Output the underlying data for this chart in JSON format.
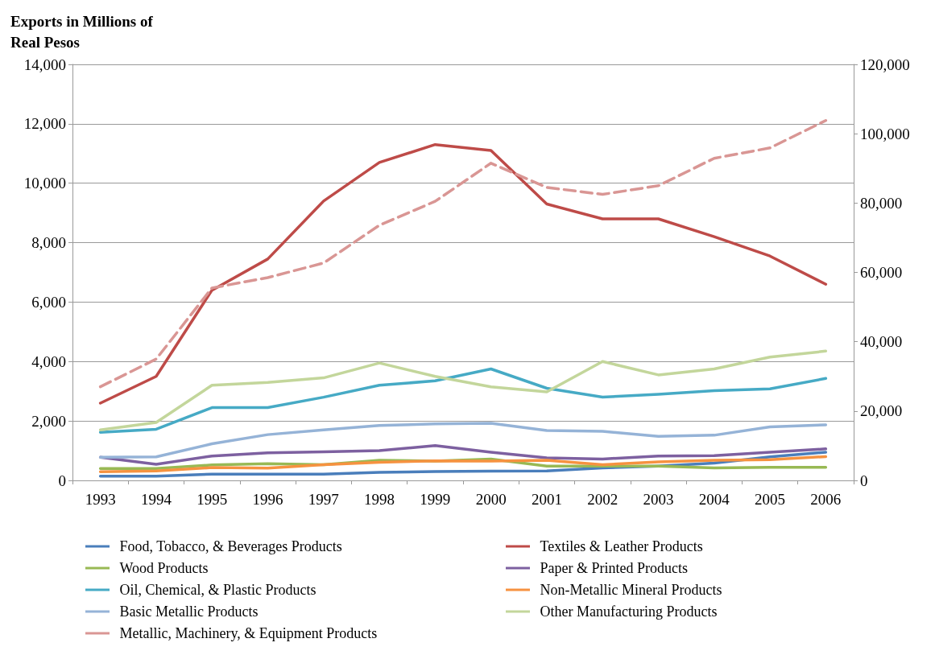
{
  "chart_data": {
    "type": "line",
    "ylabel": "Exports in Millions of Real Pesos",
    "categories": [
      "1993",
      "1994",
      "1995",
      "1996",
      "1997",
      "1998",
      "1999",
      "2000",
      "2001",
      "2002",
      "2003",
      "2004",
      "2005",
      "2006"
    ],
    "ylim": [
      0,
      14000
    ],
    "yticks": [
      {
        "value": 0,
        "label": "0"
      },
      {
        "value": 2000,
        "label": "2,000"
      },
      {
        "value": 4000,
        "label": "4,000"
      },
      {
        "value": 6000,
        "label": "6,000"
      },
      {
        "value": 8000,
        "label": "8,000"
      },
      {
        "value": 10000,
        "label": "10,000"
      },
      {
        "value": 12000,
        "label": "12,000"
      },
      {
        "value": 14000,
        "label": "14,000"
      }
    ],
    "y2lim": [
      0,
      120000
    ],
    "y2ticks": [
      {
        "value": 0,
        "label": "0"
      },
      {
        "value": 20000,
        "label": "20,000"
      },
      {
        "value": 40000,
        "label": "40,000"
      },
      {
        "value": 60000,
        "label": "60,000"
      },
      {
        "value": 80000,
        "label": "80,000"
      },
      {
        "value": 100000,
        "label": "100,000"
      },
      {
        "value": 120000,
        "label": "120,000"
      }
    ],
    "grid": "y",
    "legend": "bottom",
    "marker": "none",
    "series": [
      {
        "name": "Food, Tobacco, & Beverages Products",
        "color": "#4a7ebb",
        "values": [
          140,
          140,
          210,
          210,
          210,
          270,
          300,
          310,
          320,
          420,
          480,
          580,
          790,
          950
        ]
      },
      {
        "name": "Textiles & Leather Products",
        "color": "#be4b48",
        "values": [
          2600,
          3500,
          6400,
          7450,
          9400,
          10700,
          11300,
          11100,
          9300,
          8800,
          8800,
          8200,
          7550,
          6600
        ]
      },
      {
        "name": "Wood Products",
        "color": "#98b954",
        "values": [
          400,
          400,
          520,
          560,
          530,
          680,
          650,
          720,
          480,
          480,
          480,
          420,
          440,
          440
        ]
      },
      {
        "name": "Paper & Printed Products",
        "color": "#7d60a0",
        "values": [
          780,
          540,
          820,
          930,
          960,
          1000,
          1170,
          950,
          760,
          720,
          820,
          830,
          950,
          1060
        ]
      },
      {
        "name": "Oil, Chemical, & Plastic Products",
        "color": "#46aac5",
        "values": [
          1620,
          1720,
          2450,
          2450,
          2800,
          3200,
          3350,
          3750,
          3100,
          2800,
          2900,
          3020,
          3080,
          3430
        ]
      },
      {
        "name": "Non-Metallic Mineral Products",
        "color": "#f69240",
        "values": [
          290,
          320,
          430,
          410,
          530,
          610,
          660,
          650,
          680,
          530,
          620,
          680,
          700,
          800
        ]
      },
      {
        "name": "Basic Metallic Products",
        "color": "#95b3d7",
        "values": [
          780,
          790,
          1230,
          1540,
          1700,
          1850,
          1900,
          1920,
          1680,
          1650,
          1480,
          1520,
          1800,
          1870
        ]
      },
      {
        "name": "Other Manufacturing Products",
        "color": "#c3d69b",
        "values": [
          1700,
          1950,
          3200,
          3300,
          3450,
          3950,
          3500,
          3150,
          2980,
          4000,
          3550,
          3750,
          4150,
          4350
        ]
      },
      {
        "name": "Metallic, Machinery, & Equipment Products",
        "color": "#d99694",
        "axis": "y2",
        "line_style": "dashed",
        "values": [
          27000,
          35000,
          55500,
          58500,
          62700,
          73600,
          80500,
          91500,
          84500,
          82500,
          85000,
          92900,
          95900,
          103800
        ]
      }
    ]
  }
}
